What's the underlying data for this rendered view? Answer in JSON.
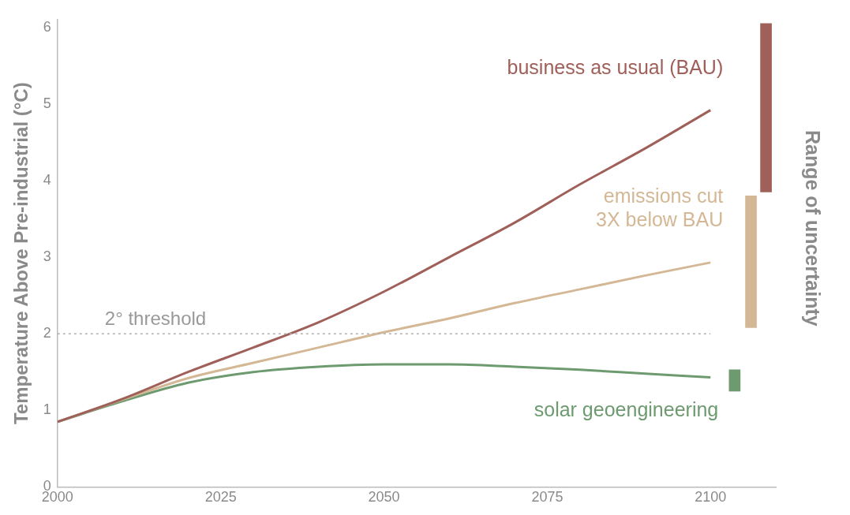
{
  "chart_data": {
    "type": "line",
    "ylabel": "Temperature Above Pre-industrial (°C)",
    "xlim": [
      2000,
      2110
    ],
    "xticks": [
      2000,
      2025,
      2050,
      2075,
      2100
    ],
    "ylim": [
      0,
      6.1
    ],
    "yticks": [
      0,
      1,
      2,
      3,
      4,
      5,
      6
    ],
    "grid": false,
    "legend": false,
    "marker": "none",
    "line_style": "solid",
    "series": [
      {
        "name": "business as usual (BAU)",
        "color": "#a0605a",
        "x": [
          2000,
          2010,
          2020,
          2030,
          2040,
          2050,
          2060,
          2070,
          2080,
          2090,
          2100
        ],
        "values": [
          0.85,
          1.15,
          1.5,
          1.82,
          2.15,
          2.55,
          3.0,
          3.45,
          3.95,
          4.42,
          4.92
        ]
      },
      {
        "name": "emissions cut\n3X below BAU",
        "color": "#d4b896",
        "x": [
          2000,
          2010,
          2020,
          2030,
          2040,
          2050,
          2060,
          2070,
          2080,
          2090,
          2100
        ],
        "values": [
          0.85,
          1.14,
          1.42,
          1.62,
          1.82,
          2.02,
          2.2,
          2.4,
          2.58,
          2.76,
          2.93
        ]
      },
      {
        "name": "solar geoengineering",
        "color": "#6e9a70",
        "x": [
          2000,
          2010,
          2020,
          2030,
          2040,
          2050,
          2060,
          2070,
          2080,
          2090,
          2100
        ],
        "values": [
          0.85,
          1.12,
          1.36,
          1.5,
          1.57,
          1.6,
          1.6,
          1.57,
          1.53,
          1.48,
          1.43
        ]
      },
      {
        "type": "bar",
        "color": "#a0605a",
        "x": [
          2108.5
        ],
        "base": [
          3.85
        ],
        "values": [
          2.2
        ]
      },
      {
        "type": "bar",
        "color": "#d4b896",
        "x": [
          2106.2
        ],
        "base": [
          2.08
        ],
        "values": [
          1.72
        ]
      },
      {
        "type": "bar",
        "color": "#6e9a70",
        "x": [
          2103.7
        ],
        "base": [
          1.25
        ],
        "values": [
          0.28
        ]
      }
    ],
    "ref_lines": [
      {
        "axis": "y",
        "value": 2,
        "label": "2° threshold",
        "color": "#b0b0b0",
        "line_style": "dotted"
      }
    ],
    "annotations": [
      "Range of uncertainty"
    ]
  }
}
